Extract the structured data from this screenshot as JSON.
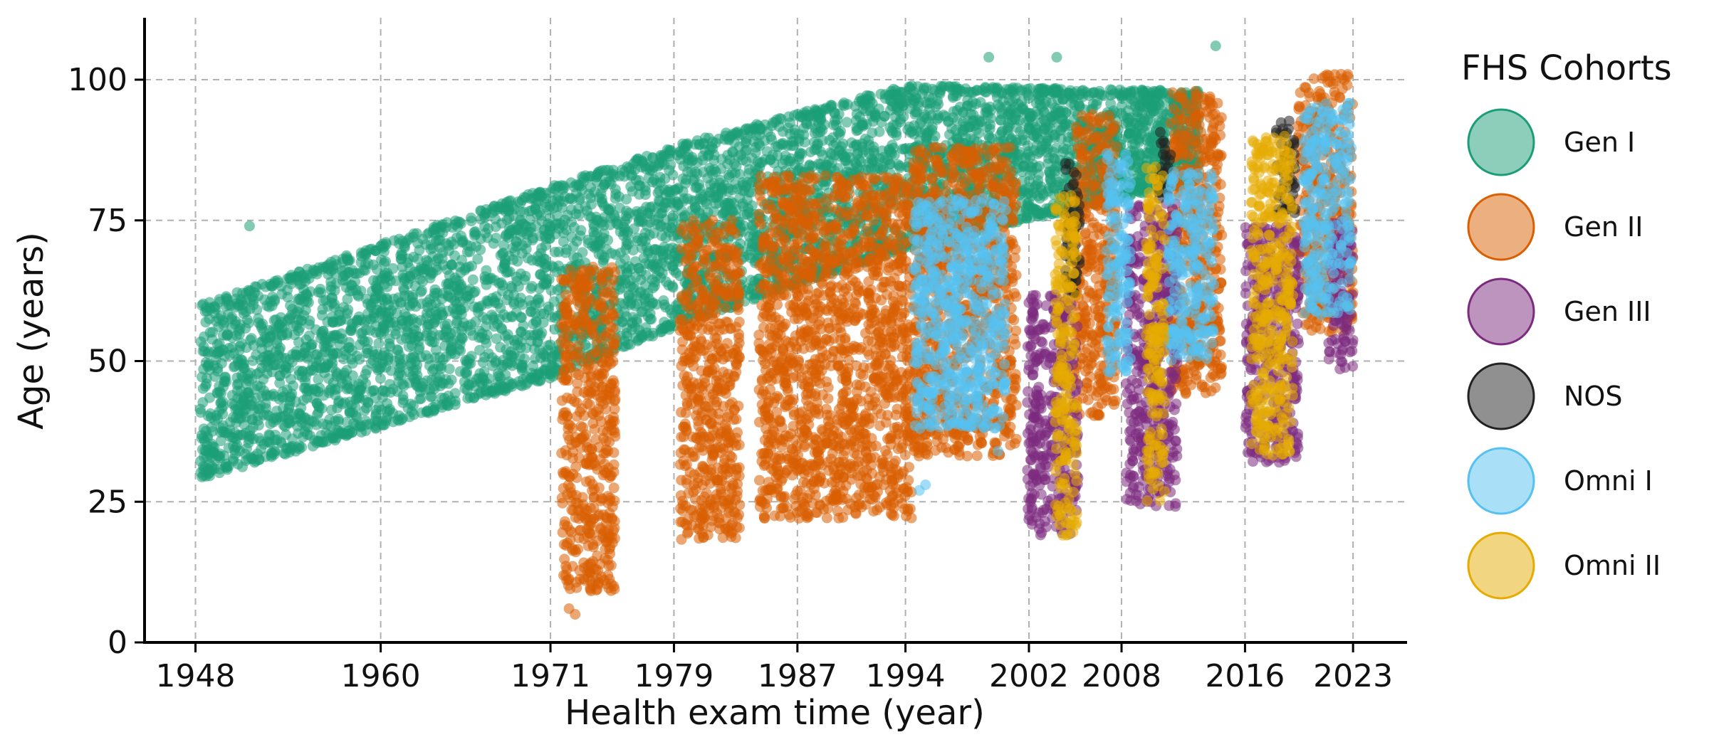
{
  "chart_data": {
    "type": "scatter",
    "title": "",
    "xlabel": "Health exam time (year)",
    "ylabel": "Age (years)",
    "xlim": [
      1944.7,
      2026.5
    ],
    "ylim": [
      0,
      111
    ],
    "xticks": [
      1948,
      1960,
      1971,
      1979,
      1987,
      1994,
      2002,
      2008,
      2016,
      2023
    ],
    "yticks": [
      0,
      25,
      50,
      75,
      100
    ],
    "grid": true,
    "legend": {
      "title": "FHS Cohorts",
      "placement": "right"
    },
    "series": [
      {
        "name": "Gen I",
        "color": "#1b9e77",
        "bands": [
          {
            "x": [
              1948.3,
              1971
            ],
            "ymin": [
              29,
              47
            ],
            "ymax": [
              60,
              81
            ]
          },
          {
            "x": [
              1971,
              1980
            ],
            "ymin": [
              47,
              57
            ],
            "ymax": [
              81,
              89
            ]
          },
          {
            "x": [
              1980,
              1994
            ],
            "ymin": [
              57,
              70
            ],
            "ymax": [
              89,
              99
            ]
          },
          {
            "x": [
              1994,
              2013
            ],
            "ymin": [
              70,
              82
            ],
            "ymax": [
              99,
              98
            ]
          }
        ],
        "outliers": [
          [
            1951.5,
            74
          ],
          [
            2014.1,
            106
          ],
          [
            1999.4,
            104
          ],
          [
            2003.8,
            104
          ]
        ]
      },
      {
        "name": "Gen II",
        "color": "#d95f02",
        "clusters": [
          {
            "x": [
              1971.7,
              1975.2
            ],
            "y": [
              9,
              67
            ]
          },
          {
            "x": [
              1979.4,
              1983.3
            ],
            "y": [
              18,
              75
            ]
          },
          {
            "x": [
              1984.5,
              1994.4
            ],
            "y": [
              22,
              83
            ]
          },
          {
            "x": [
              1994.5,
              2001.2
            ],
            "y": [
              33,
              88
            ]
          },
          {
            "x": [
              2004.9,
              2007.7
            ],
            "y": [
              40,
              94
            ]
          },
          {
            "x": [
              2011.1,
              2014.5
            ],
            "y": [
              44,
              98
            ]
          },
          {
            "x": [
              2019.4,
              2023.0
            ],
            "y": [
              55,
              101
            ]
          }
        ],
        "outliers": [
          [
            1972.2,
            6
          ],
          [
            1972.6,
            5
          ],
          [
            1975.1,
            10
          ]
        ]
      },
      {
        "name": "Gen III",
        "color": "#7b2a7e",
        "clusters": [
          {
            "x": [
              2001.9,
              2005.2
            ],
            "y": [
              19,
              62
            ]
          },
          {
            "x": [
              2008.3,
              2011.6
            ],
            "y": [
              24,
              78
            ]
          },
          {
            "x": [
              2016.0,
              2019.5
            ],
            "y": [
              32,
              74
            ]
          },
          {
            "x": [
              2021.4,
              2023.0
            ],
            "y": [
              48,
              75
            ]
          }
        ]
      },
      {
        "name": "NOS",
        "color": "#222222",
        "clusters": [
          {
            "x": [
              2004.3,
              2005.3
            ],
            "y": [
              62,
              86
            ]
          },
          {
            "x": [
              2010.4,
              2011.2
            ],
            "y": [
              78,
              91
            ]
          },
          {
            "x": [
              2018.0,
              2019.3
            ],
            "y": [
              76,
              93
            ]
          }
        ]
      },
      {
        "name": "Omni I",
        "color": "#56c1f0",
        "clusters": [
          {
            "x": [
              1994.5,
              2000.5
            ],
            "y": [
              38,
              79
            ]
          },
          {
            "x": [
              2007.0,
              2008.6
            ],
            "y": [
              48,
              87
            ]
          },
          {
            "x": [
              2011.0,
              2014.0
            ],
            "y": [
              50,
              84
            ]
          },
          {
            "x": [
              2019.8,
              2022.9
            ],
            "y": [
              58,
              96
            ]
          }
        ],
        "outliers": [
          [
            1994.9,
            27
          ],
          [
            1995.3,
            28
          ],
          [
            2000.0,
            34
          ]
        ]
      },
      {
        "name": "Omni II",
        "color": "#e6ab02",
        "clusters": [
          {
            "x": [
              2003.7,
              2005.1
            ],
            "y": [
              19,
              80
            ]
          },
          {
            "x": [
              2009.6,
              2010.8
            ],
            "y": [
              25,
              85
            ]
          },
          {
            "x": [
              2016.4,
              2019.1
            ],
            "y": [
              33,
              90
            ]
          }
        ]
      }
    ]
  }
}
